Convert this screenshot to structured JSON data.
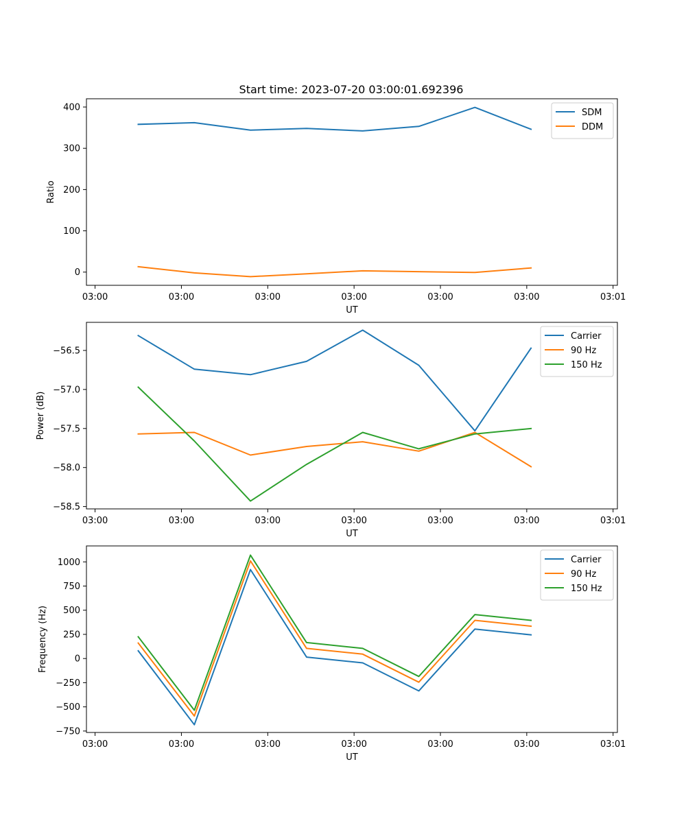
{
  "figure_title": "Start time: 2023-07-20 03:00:01.692396",
  "colors": {
    "blue": "#1f77b4",
    "orange": "#ff7f0e",
    "green": "#2ca02c"
  },
  "chart_data": [
    {
      "type": "line",
      "title": "Start time: 2023-07-20 03:00:01.692396",
      "xlabel": "UT",
      "ylabel": "Ratio",
      "x": [
        0.5,
        1.15,
        1.8,
        2.45,
        3.1,
        3.75,
        4.4,
        5.05
      ],
      "xlim": [
        -0.1,
        6.05
      ],
      "x_ticks": [
        0,
        1,
        2,
        3,
        4,
        5,
        6
      ],
      "x_tick_labels": [
        "03:00",
        "03:00",
        "03:00",
        "03:00",
        "03:00",
        "03:00",
        "03:01"
      ],
      "ylim": [
        -32,
        420
      ],
      "y_ticks": [
        0,
        100,
        200,
        300,
        400
      ],
      "y_tick_labels": [
        "0",
        "100",
        "200",
        "300",
        "400"
      ],
      "legend_position": "top-right",
      "series": [
        {
          "name": "SDM",
          "color": "#1f77b4",
          "values": [
            358,
            362,
            344,
            348,
            342,
            353,
            399,
            346
          ]
        },
        {
          "name": "DDM",
          "color": "#ff7f0e",
          "values": [
            13,
            -2,
            -11,
            -4,
            3,
            1,
            -1,
            10
          ]
        }
      ]
    },
    {
      "type": "line",
      "title": "",
      "xlabel": "UT",
      "ylabel": "Power (dB)",
      "x": [
        0.5,
        1.15,
        1.8,
        2.45,
        3.1,
        3.75,
        4.4,
        5.05
      ],
      "xlim": [
        -0.1,
        6.05
      ],
      "x_ticks": [
        0,
        1,
        2,
        3,
        4,
        5,
        6
      ],
      "x_tick_labels": [
        "03:00",
        "03:00",
        "03:00",
        "03:00",
        "03:00",
        "03:00",
        "03:01"
      ],
      "ylim": [
        -58.53,
        -56.14
      ],
      "y_ticks": [
        -56.5,
        -57.0,
        -57.5,
        -58.0,
        -58.5
      ],
      "y_tick_labels": [
        "−56.5",
        "−57.0",
        "−57.5",
        "−58.0",
        "−58.5"
      ],
      "legend_position": "top-right",
      "series": [
        {
          "name": "Carrier",
          "color": "#1f77b4",
          "values": [
            -56.31,
            -56.74,
            -56.81,
            -56.64,
            -56.24,
            -56.69,
            -57.53,
            -56.47
          ]
        },
        {
          "name": "90 Hz",
          "color": "#ff7f0e",
          "values": [
            -57.57,
            -57.55,
            -57.84,
            -57.73,
            -57.67,
            -57.79,
            -57.55,
            -57.99
          ]
        },
        {
          "name": "150 Hz",
          "color": "#2ca02c",
          "values": [
            -56.97,
            -57.66,
            -58.43,
            -57.96,
            -57.55,
            -57.76,
            -57.57,
            -57.5
          ]
        }
      ]
    },
    {
      "type": "line",
      "title": "",
      "xlabel": "UT",
      "ylabel": "Frequency (Hz)",
      "x": [
        0.5,
        1.15,
        1.8,
        2.45,
        3.1,
        3.75,
        4.4,
        5.05
      ],
      "xlim": [
        -0.1,
        6.05
      ],
      "x_ticks": [
        0,
        1,
        2,
        3,
        4,
        5,
        6
      ],
      "x_tick_labels": [
        "03:00",
        "03:00",
        "03:00",
        "03:00",
        "03:00",
        "03:00",
        "03:01"
      ],
      "ylim": [
        -765,
        1165
      ],
      "y_ticks": [
        1000,
        750,
        500,
        250,
        0,
        -250,
        -500,
        -750
      ],
      "y_tick_labels": [
        "1000",
        "750",
        "500",
        "250",
        "0",
        "−250",
        "−500",
        "−750"
      ],
      "legend_position": "top-right",
      "series": [
        {
          "name": "Carrier",
          "color": "#1f77b4",
          "values": [
            80,
            -685,
            920,
            15,
            -45,
            -335,
            305,
            245
          ]
        },
        {
          "name": "90 Hz",
          "color": "#ff7f0e",
          "values": [
            160,
            -595,
            1010,
            105,
            45,
            -245,
            395,
            335
          ]
        },
        {
          "name": "150 Hz",
          "color": "#2ca02c",
          "values": [
            225,
            -535,
            1070,
            165,
            105,
            -185,
            455,
            395
          ]
        }
      ]
    }
  ]
}
